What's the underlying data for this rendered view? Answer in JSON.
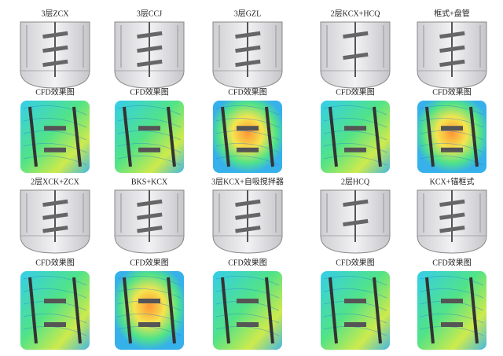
{
  "grid": [
    [
      "3层ZCX",
      "3层CCJ",
      "3层GZL",
      "2层KCX+HCQ",
      "框式+盘管"
    ],
    [
      "CFD效果图",
      "CFD效果图",
      "CFD效果图",
      "CFD效果图",
      "CFD效果图"
    ],
    [
      "2层XCK+ZCX",
      "BKS+KCX",
      "3层KCX+自吸搅拌器",
      "2层HCQ",
      "KCX+锚框式"
    ],
    [
      "CFD效果图",
      "CFD效果图",
      "CFD效果图",
      "CFD效果图",
      "CFD效果图"
    ]
  ]
}
